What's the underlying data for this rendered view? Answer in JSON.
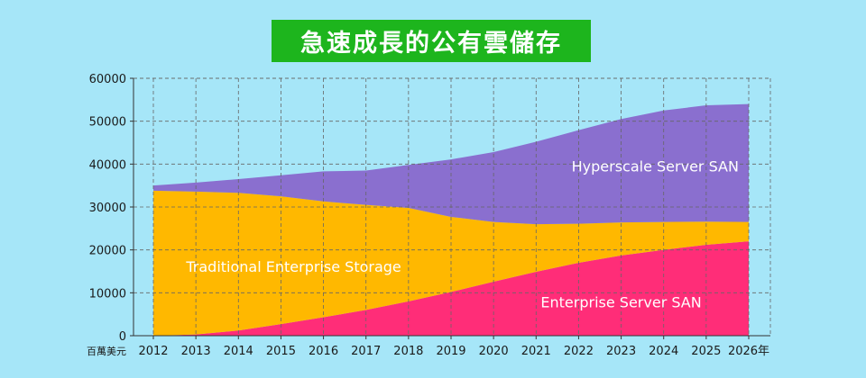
{
  "colors": {
    "background": "#a6e6f8",
    "title_bg": "#1db51d",
    "plot_bg": "#a6e6f8",
    "enterprise_server_san": "#ff2d78",
    "traditional_storage": "#ffb800",
    "hyperscale_server_san": "#8a6fcf",
    "grid": "#666666"
  },
  "chart_data": {
    "type": "area",
    "stacked": true,
    "title": "急速成長的公有雲儲存",
    "ylabel_unit": "百萬美元",
    "x_unit": "年",
    "x": [
      2012,
      2013,
      2014,
      2015,
      2016,
      2017,
      2018,
      2019,
      2020,
      2021,
      2022,
      2023,
      2024,
      2025,
      2026
    ],
    "x_tick_labels": [
      "2012",
      "2013",
      "2014",
      "2015",
      "2016",
      "2017",
      "2018",
      "2019",
      "2020",
      "2021",
      "2022",
      "2023",
      "2024",
      "2025",
      "2026年"
    ],
    "ylim": [
      0,
      60000
    ],
    "yticks": [
      0,
      10000,
      20000,
      30000,
      40000,
      50000,
      60000
    ],
    "grid": true,
    "series": [
      {
        "name": "Enterprise Server SAN",
        "color_key": "enterprise_server_san",
        "values": [
          0,
          300,
          1200,
          2700,
          4300,
          6000,
          8000,
          10200,
          12600,
          14900,
          17000,
          18700,
          20000,
          21200,
          22000
        ]
      },
      {
        "name": "Traditional Enterprise Storage",
        "color_key": "traditional_storage",
        "values": [
          33800,
          33300,
          32100,
          29800,
          27000,
          24500,
          21800,
          17500,
          13900,
          11100,
          9100,
          7700,
          6500,
          5400,
          4500
        ]
      },
      {
        "name": "Hyperscale Server SAN",
        "color_key": "hyperscale_server_san",
        "values": [
          1200,
          2100,
          3200,
          4900,
          7000,
          8000,
          10000,
          13400,
          16300,
          19200,
          21800,
          24100,
          26000,
          27100,
          27500
        ]
      }
    ]
  }
}
